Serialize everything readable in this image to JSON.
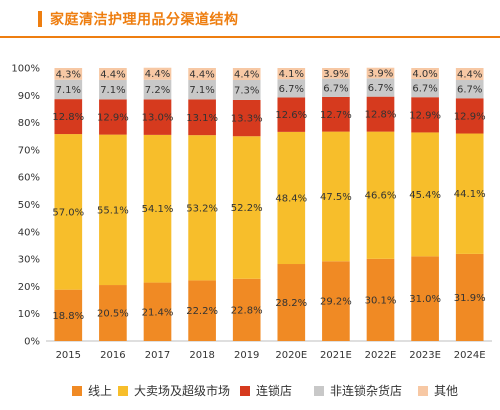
{
  "title": "家庭清洁护理用品分渠道结构",
  "colors": {
    "accent": "#ee7e10",
    "online": "#f08a24",
    "hypermarket": "#f7be2b",
    "chain": "#d63a1e",
    "non_chain": "#c8c8c8",
    "other": "#f7c8a4"
  },
  "chart_data": {
    "type": "bar",
    "stacked": true,
    "categories": [
      "2015",
      "2016",
      "2017",
      "2018",
      "2019",
      "2020E",
      "2021E",
      "2022E",
      "2023E",
      "2024E"
    ],
    "ylim": [
      0,
      100
    ],
    "yticks": [
      "0%",
      "10%",
      "20%",
      "30%",
      "40%",
      "50%",
      "60%",
      "70%",
      "80%",
      "90%",
      "100%"
    ],
    "series": [
      {
        "name": "线上",
        "values": [
          18.8,
          20.5,
          21.4,
          22.2,
          22.8,
          28.2,
          29.2,
          30.1,
          31.0,
          31.9
        ],
        "labels": [
          "18.8%",
          "20.5%",
          "21.4%",
          "22.2%",
          "22.8%",
          "28.2%",
          "29.2%",
          "30.1%",
          "31.0%",
          "31.9%"
        ]
      },
      {
        "name": "大卖场及超级市场",
        "values": [
          57.0,
          55.1,
          54.1,
          53.2,
          52.2,
          48.4,
          47.5,
          46.6,
          45.4,
          44.1
        ],
        "labels": [
          "57.0%",
          "55.1%",
          "54.1%",
          "53.2%",
          "52.2%",
          "48.4%",
          "47.5%",
          "46.6%",
          "45.4%",
          "44.1%"
        ]
      },
      {
        "name": "连锁店",
        "values": [
          12.8,
          12.9,
          13.0,
          13.1,
          13.3,
          12.6,
          12.7,
          12.8,
          12.9,
          12.9
        ],
        "labels": [
          "12.8%",
          "12.9%",
          "13.0%",
          "13.1%",
          "13.3%",
          "12.6%",
          "12.7%",
          "12.8%",
          "12.9%",
          "12.9%"
        ]
      },
      {
        "name": "非连锁杂货店",
        "values": [
          7.1,
          7.1,
          7.2,
          7.1,
          7.3,
          6.7,
          6.7,
          6.7,
          6.7,
          6.7
        ],
        "labels": [
          "7.1%",
          "7.1%",
          "7.2%",
          "7.1%",
          "7.3%",
          "6.7%",
          "6.7%",
          "6.7%",
          "6.7%",
          "6.7%"
        ]
      },
      {
        "name": "其他",
        "values": [
          4.3,
          4.4,
          4.4,
          4.4,
          4.4,
          4.1,
          3.9,
          3.9,
          4.0,
          4.4
        ],
        "labels": [
          "4.3%",
          "4.4%",
          "4.4%",
          "4.4%",
          "4.4%",
          "4.1%",
          "3.9%",
          "3.9%",
          "4.0%",
          "4.4%"
        ]
      }
    ],
    "legend_position": "bottom",
    "grid": false
  },
  "legend": {
    "online": "线上",
    "hypermarket": "大卖场及超级市场",
    "chain": "连锁店",
    "non_chain": "非连锁杂货店",
    "other": "其他"
  }
}
